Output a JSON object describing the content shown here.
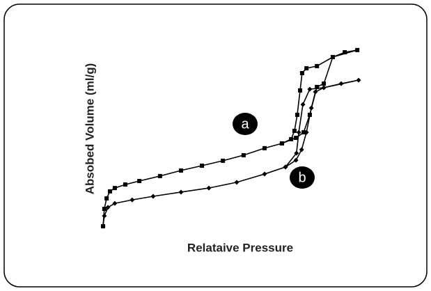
{
  "chart_data": {
    "type": "line",
    "x_label": "Relataive Pressure",
    "y_label": "Absobed Volume (ml/g)",
    "xlim": [
      0,
      100
    ],
    "ylim": [
      0,
      100
    ],
    "series": [
      {
        "name": "a",
        "color": "#000000",
        "marker": "square",
        "x": [
          0,
          0.5,
          1.4,
          2.7,
          4.6,
          8.7,
          14.2,
          22.3,
          30.5,
          38.7,
          46.9,
          55,
          63.2,
          70,
          73.6,
          74.9,
          76,
          77.1,
          77.9,
          79.6,
          83.7,
          89.9,
          94.6,
          99.5,
          89.9,
          86.4,
          83.7,
          80.9,
          78.5,
          75.5,
          70
        ],
        "values": [
          1.9,
          11.3,
          17,
          20.8,
          22.6,
          24.5,
          26.4,
          29.1,
          32.1,
          34.7,
          37.4,
          40.4,
          44.2,
          46.8,
          49.1,
          53.6,
          62.3,
          75.5,
          84.9,
          87.5,
          88.7,
          93.6,
          96.2,
          97.4,
          93.6,
          79.2,
          77.4,
          62.3,
          52.8,
          49.8,
          46.8
        ]
      },
      {
        "name": "b",
        "color": "#000000",
        "marker": "diamond",
        "x": [
          0,
          0.5,
          1.9,
          4.6,
          11.4,
          19.6,
          30.5,
          41.4,
          52.3,
          63.2,
          71.4,
          75.5,
          77.7,
          79.6,
          81.5,
          83.1,
          86.4,
          93.2,
          100,
          86.4,
          80.9,
          78.2,
          76.6,
          75.7,
          71.4
        ],
        "values": [
          1.9,
          7.5,
          12.1,
          14.3,
          16.2,
          18.1,
          20.4,
          22.6,
          25.7,
          30.2,
          34,
          37.7,
          43.4,
          52.8,
          66,
          74.7,
          77,
          79.2,
          81.1,
          77,
          76.2,
          67.9,
          52.8,
          41.5,
          34
        ]
      }
    ]
  }
}
